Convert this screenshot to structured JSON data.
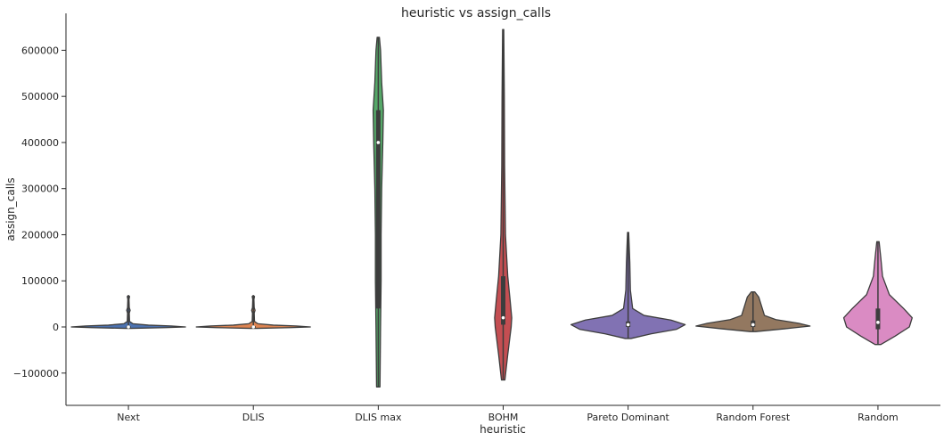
{
  "chart_data": {
    "type": "violin",
    "title": "heuristic vs assign_calls",
    "xlabel": "heuristic",
    "ylabel": "assign_calls",
    "ylim": [
      -170000,
      680000
    ],
    "yticks": [
      -100000,
      0,
      100000,
      200000,
      300000,
      400000,
      500000,
      600000
    ],
    "ytick_labels": [
      "−100000",
      "0",
      "100000",
      "200000",
      "300000",
      "400000",
      "500000",
      "600000"
    ],
    "grid": false,
    "categories": [
      "Next",
      "DLIS",
      "DLIS max",
      "BOHM",
      "Pareto Dominant",
      "Random Forest",
      "Random"
    ],
    "series": [
      {
        "category": "Next",
        "color": "#4c72b0",
        "min": -3000,
        "max": 68000,
        "median": 0,
        "q1": -500,
        "q3": 2000,
        "density": [
          [
            -3000,
            0.05
          ],
          [
            -1500,
            0.65
          ],
          [
            0,
            1.0
          ],
          [
            2000,
            0.75
          ],
          [
            4000,
            0.35
          ],
          [
            7000,
            0.08
          ],
          [
            12000,
            0.02
          ],
          [
            30000,
            0.015
          ],
          [
            36000,
            0.03
          ],
          [
            42000,
            0.015
          ],
          [
            60000,
            0.01
          ],
          [
            66000,
            0.02
          ],
          [
            68000,
            0.005
          ]
        ]
      },
      {
        "category": "DLIS",
        "color": "#dd8452",
        "min": -3000,
        "max": 68000,
        "median": 0,
        "q1": -500,
        "q3": 2000,
        "density": [
          [
            -3000,
            0.05
          ],
          [
            -1500,
            0.65
          ],
          [
            0,
            1.0
          ],
          [
            2000,
            0.75
          ],
          [
            4000,
            0.35
          ],
          [
            7000,
            0.08
          ],
          [
            12000,
            0.02
          ],
          [
            30000,
            0.015
          ],
          [
            36000,
            0.03
          ],
          [
            42000,
            0.015
          ],
          [
            60000,
            0.01
          ],
          [
            66000,
            0.02
          ],
          [
            68000,
            0.005
          ]
        ]
      },
      {
        "category": "DLIS max",
        "color": "#55a868",
        "min": -130000,
        "max": 628000,
        "median": 400000,
        "q1": 40000,
        "q3": 470000,
        "density": [
          [
            -130000,
            0.03
          ],
          [
            0,
            0.04
          ],
          [
            100000,
            0.05
          ],
          [
            200000,
            0.05
          ],
          [
            300000,
            0.06
          ],
          [
            400000,
            0.08
          ],
          [
            470000,
            0.09
          ],
          [
            530000,
            0.06
          ],
          [
            600000,
            0.04
          ],
          [
            628000,
            0.02
          ]
        ]
      },
      {
        "category": "BOHM",
        "color": "#c44e52",
        "min": -115000,
        "max": 645000,
        "median": 20000,
        "q1": 5000,
        "q3": 110000,
        "density": [
          [
            -115000,
            0.03
          ],
          [
            -60000,
            0.08
          ],
          [
            -20000,
            0.12
          ],
          [
            0,
            0.14
          ],
          [
            20000,
            0.15
          ],
          [
            60000,
            0.12
          ],
          [
            110000,
            0.08
          ],
          [
            200000,
            0.04
          ],
          [
            350000,
            0.025
          ],
          [
            500000,
            0.02
          ],
          [
            645000,
            0.01
          ]
        ]
      },
      {
        "category": "Pareto Dominant",
        "color": "#8172b3",
        "min": -25000,
        "max": 205000,
        "median": 5000,
        "q1": 0,
        "q3": 12000,
        "density": [
          [
            -25000,
            0.05
          ],
          [
            -15000,
            0.4
          ],
          [
            -5000,
            0.85
          ],
          [
            5000,
            1.0
          ],
          [
            15000,
            0.75
          ],
          [
            25000,
            0.28
          ],
          [
            40000,
            0.08
          ],
          [
            80000,
            0.04
          ],
          [
            140000,
            0.03
          ],
          [
            205000,
            0.01
          ]
        ]
      },
      {
        "category": "Random Forest",
        "color": "#937860",
        "min": -10000,
        "max": 76000,
        "median": 5000,
        "q1": 0,
        "q3": 14000,
        "density": [
          [
            -10000,
            0.05
          ],
          [
            -4000,
            0.55
          ],
          [
            2000,
            1.0
          ],
          [
            8000,
            0.8
          ],
          [
            16000,
            0.4
          ],
          [
            25000,
            0.2
          ],
          [
            45000,
            0.15
          ],
          [
            65000,
            0.1
          ],
          [
            76000,
            0.03
          ]
        ]
      },
      {
        "category": "Random",
        "color": "#da8bc3",
        "min": -38000,
        "max": 185000,
        "median": 10000,
        "q1": -5000,
        "q3": 40000,
        "density": [
          [
            -38000,
            0.05
          ],
          [
            -20000,
            0.3
          ],
          [
            0,
            0.55
          ],
          [
            20000,
            0.6
          ],
          [
            40000,
            0.45
          ],
          [
            70000,
            0.2
          ],
          [
            110000,
            0.08
          ],
          [
            150000,
            0.05
          ],
          [
            185000,
            0.02
          ]
        ]
      }
    ]
  }
}
